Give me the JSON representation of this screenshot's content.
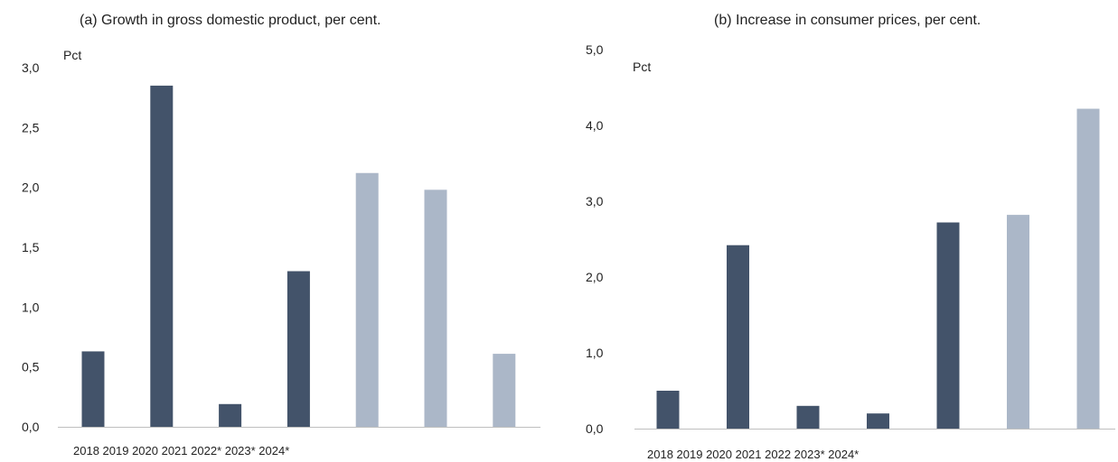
{
  "chart_data": [
    {
      "type": "bar",
      "title": "(a) Growth in gross domestic product, per cent.",
      "ylabel": "Pct",
      "categories_label": "2018 2019 2020 2021 2022* 2023* 2024*",
      "bars": [
        0.63,
        2.85,
        0.19,
        1.3,
        2.12,
        1.98,
        0.61
      ],
      "bar_colors": [
        "#43536a",
        "#43536a",
        "#43536a",
        "#43536a",
        "#abb7c8",
        "#abb7c8",
        "#abb7c8"
      ],
      "ylim": [
        0,
        3.0
      ],
      "yticks": [
        "0,0",
        "0,5",
        "1,0",
        "1,5",
        "2,0",
        "2,5",
        "3,0"
      ],
      "grid": false
    },
    {
      "type": "bar",
      "title": "(b) Increase in consumer prices, per cent.",
      "ylabel": "Pct",
      "categories_label": "2018 2019 2020 2021 2022 2023* 2024*",
      "bars": [
        0.5,
        2.42,
        0.3,
        0.2,
        2.72,
        2.82,
        4.22
      ],
      "bar_colors": [
        "#43536a",
        "#43536a",
        "#43536a",
        "#43536a",
        "#43536a",
        "#abb7c8",
        "#abb7c8"
      ],
      "ylim": [
        0,
        5.0
      ],
      "yticks": [
        "0,0",
        "1,0",
        "2,0",
        "3,0",
        "4,0",
        "5,0"
      ],
      "grid": false
    }
  ]
}
